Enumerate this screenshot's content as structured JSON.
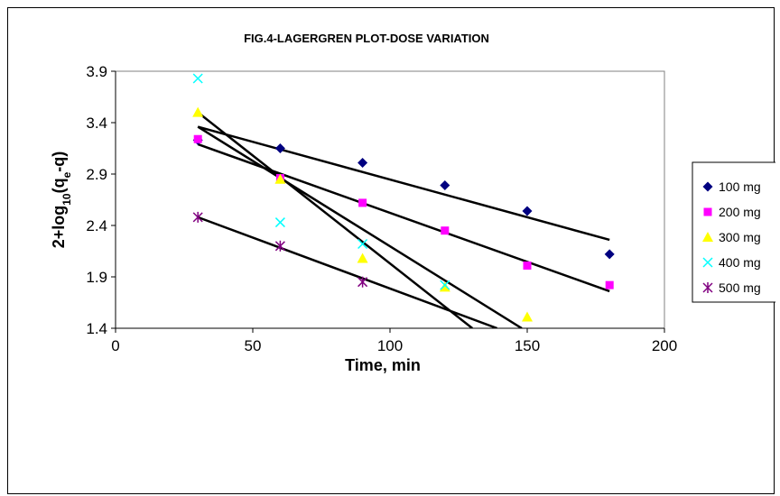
{
  "chart_data": {
    "type": "scatter",
    "title": "FIG.4-LAGERGREN PLOT-DOSE VARIATION",
    "xlabel": "Time, min",
    "ylabel_parts": [
      "2+log",
      "10",
      "(q",
      "e",
      "-q)"
    ],
    "xlim": [
      0,
      200
    ],
    "ylim": [
      1.4,
      3.9
    ],
    "xticks": [
      0,
      50,
      100,
      150,
      200
    ],
    "yticks": [
      1.4,
      1.9,
      2.4,
      2.9,
      3.4,
      3.9
    ],
    "grid": false,
    "legend_position": "right",
    "series": [
      {
        "name": "100 mg",
        "marker": "diamond",
        "color": "#000080",
        "x": [
          30,
          60,
          90,
          120,
          150,
          180
        ],
        "y": [
          3.23,
          3.15,
          3.01,
          2.79,
          2.54,
          2.12
        ],
        "fit": [
          [
            30,
            3.36
          ],
          [
            180,
            2.26
          ]
        ]
      },
      {
        "name": "200 mg",
        "marker": "square",
        "color": "#ff00ff",
        "x": [
          30,
          60,
          90,
          120,
          150,
          180
        ],
        "y": [
          3.24,
          2.86,
          2.62,
          2.35,
          2.01,
          1.82
        ],
        "fit": [
          [
            30,
            3.19
          ],
          [
            180,
            1.76
          ]
        ]
      },
      {
        "name": "300 mg",
        "marker": "triangle",
        "color": "#ffff00",
        "x": [
          30,
          60,
          90,
          120,
          150
        ],
        "y": [
          3.5,
          2.85,
          2.08,
          1.8,
          1.51
        ],
        "fit": [
          [
            30,
            3.5
          ],
          [
            130,
            1.4
          ]
        ]
      },
      {
        "name": "400 mg",
        "marker": "x",
        "color": "#00ffff",
        "x": [
          30,
          60,
          90,
          120
        ],
        "y": [
          3.83,
          2.43,
          2.22,
          1.82
        ],
        "fit": [
          [
            30,
            3.36
          ],
          [
            148,
            1.4
          ]
        ]
      },
      {
        "name": "500 mg",
        "marker": "star",
        "color": "#800080",
        "x": [
          30,
          60,
          90
        ],
        "y": [
          2.48,
          2.2,
          1.85
        ],
        "fit": [
          [
            30,
            2.48
          ],
          [
            139,
            1.4
          ]
        ]
      }
    ]
  }
}
